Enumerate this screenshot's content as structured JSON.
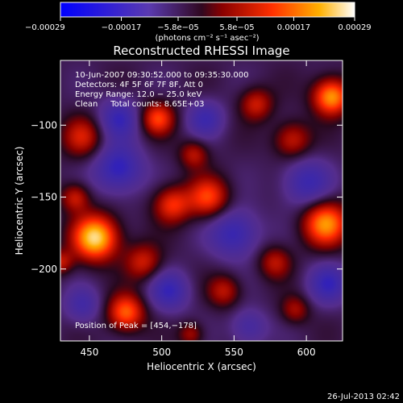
{
  "chart_data": {
    "type": "heatmap",
    "title": "Reconstructed RHESSI Image",
    "xlabel": "Heliocentric X (arcsec)",
    "ylabel": "Heliocentric Y (arcsec)",
    "xlim": [
      430,
      625
    ],
    "ylim": [
      -250,
      -55
    ],
    "x_ticks": [
      450,
      500,
      550,
      600
    ],
    "x_tick_labels": [
      "450",
      "500",
      "550",
      "600"
    ],
    "y_ticks": [
      -100,
      -150,
      -200
    ],
    "y_tick_labels": [
      "−100",
      "−150",
      "−200"
    ],
    "colorbar": {
      "range": [
        -0.00029,
        0.00029
      ],
      "tick_values": [
        -0.00029,
        -0.00017,
        -5.8e-05,
        5.8e-05,
        0.00017,
        0.00029
      ],
      "tick_labels": [
        "−0.00029",
        "−0.00017",
        "−5.8e−05",
        "5.8e−05",
        "0.00017",
        "0.00029"
      ],
      "unit_label": "(photons cm⁻² s⁻¹ asec⁻²)"
    },
    "colors": {
      "colormap_stops": [
        "#0000ff",
        "#4a2a8a",
        "#3a0a0a",
        "#ff2000",
        "#ffb000",
        "#ffffff"
      ]
    },
    "annotations": [
      "10-Jun-2007 09:30:52.000 to 09:35:30.000",
      "Detectors: 4F 5F 6F 7F 8F, Att 0",
      "Energy Range: 12.0 − 25.0 keV",
      "Clean     Total counts: 8.65E+03"
    ],
    "peak_label": "Position of Peak = [454,−178]",
    "peak": {
      "x": 454,
      "y": -178
    },
    "blobs": [
      {
        "x": 454,
        "y": -178,
        "v": 1.0,
        "r": 11
      },
      {
        "x": 617,
        "y": -80,
        "v": 0.85,
        "r": 9
      },
      {
        "x": 613,
        "y": -168,
        "v": 0.8,
        "r": 11
      },
      {
        "x": 532,
        "y": -150,
        "v": 0.6,
        "r": 10
      },
      {
        "x": 507,
        "y": -155,
        "v": 0.55,
        "r": 9
      },
      {
        "x": 497,
        "y": -95,
        "v": 0.6,
        "r": 8
      },
      {
        "x": 475,
        "y": -230,
        "v": 0.7,
        "r": 9
      },
      {
        "x": 487,
        "y": -195,
        "v": 0.45,
        "r": 9
      },
      {
        "x": 543,
        "y": -215,
        "v": 0.4,
        "r": 8
      },
      {
        "x": 445,
        "y": -108,
        "v": 0.45,
        "r": 10
      },
      {
        "x": 440,
        "y": -150,
        "v": 0.45,
        "r": 7
      },
      {
        "x": 522,
        "y": -120,
        "v": 0.4,
        "r": 7
      },
      {
        "x": 590,
        "y": -110,
        "v": 0.45,
        "r": 9
      },
      {
        "x": 578,
        "y": -195,
        "v": 0.4,
        "r": 8
      },
      {
        "x": 565,
        "y": -85,
        "v": 0.45,
        "r": 8
      },
      {
        "x": 430,
        "y": -195,
        "v": 0.4,
        "r": 6
      },
      {
        "x": 592,
        "y": -228,
        "v": 0.35,
        "r": 7
      },
      {
        "x": 520,
        "y": -245,
        "v": 0.35,
        "r": 6
      },
      {
        "x": 470,
        "y": -130,
        "v": -0.55,
        "r": 12
      },
      {
        "x": 550,
        "y": -175,
        "v": -0.5,
        "r": 12
      },
      {
        "x": 600,
        "y": -140,
        "v": -0.45,
        "r": 12
      },
      {
        "x": 470,
        "y": -95,
        "v": -0.45,
        "r": 10
      },
      {
        "x": 530,
        "y": -95,
        "v": -0.4,
        "r": 9
      },
      {
        "x": 505,
        "y": -215,
        "v": -0.45,
        "r": 10
      },
      {
        "x": 615,
        "y": -210,
        "v": -0.45,
        "r": 10
      },
      {
        "x": 560,
        "y": -240,
        "v": -0.35,
        "r": 9
      },
      {
        "x": 445,
        "y": -225,
        "v": -0.35,
        "r": 9
      }
    ]
  },
  "footer": {
    "timestamp": "26-Jul-2013 02:42"
  }
}
